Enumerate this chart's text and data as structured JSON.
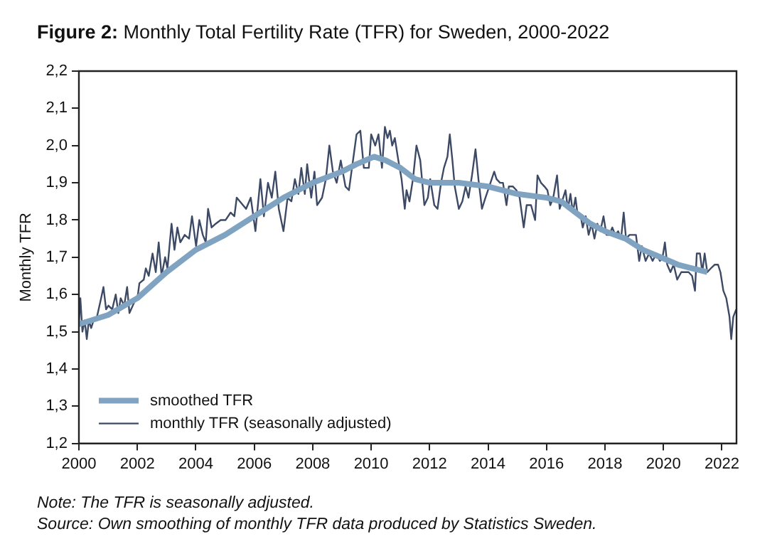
{
  "chart_data": {
    "type": "line",
    "title": "Figure 2: Monthly Total Fertility Rate (TFR) for Sweden, 2000-2022",
    "ylabel": "Monthly TFR",
    "annotations": [
      "Note: The TFR is seasonally adjusted.",
      "Source: Own smoothing of monthly TFR data produced by Statistics Sweden."
    ],
    "xlim": [
      2000,
      2022.5
    ],
    "xticks": [
      2000,
      2002,
      2004,
      2006,
      2008,
      2010,
      2012,
      2014,
      2016,
      2018,
      2020,
      2022
    ],
    "ylim": [
      1.2,
      2.2
    ],
    "yticks": [
      {
        "value": 1.2,
        "label": "1,2"
      },
      {
        "value": 1.3,
        "label": "1,3"
      },
      {
        "value": 1.4,
        "label": "1,4"
      },
      {
        "value": 1.5,
        "label": "1,5"
      },
      {
        "value": 1.6,
        "label": "1,6"
      },
      {
        "value": 1.7,
        "label": "1,7"
      },
      {
        "value": 1.8,
        "label": "1,8"
      },
      {
        "value": 1.9,
        "label": "1,9"
      },
      {
        "value": 2.0,
        "label": "2,0"
      },
      {
        "value": 2.1,
        "label": "2,1"
      },
      {
        "value": 2.2,
        "label": "2,2"
      }
    ],
    "grid": false,
    "legend": "bottom left",
    "marker": "none",
    "line_style": "solid",
    "series": [
      {
        "name": "smoothed TFR",
        "color": "#7fa3c0",
        "x": [
          2000,
          2001,
          2002,
          2003,
          2004,
          2005,
          2006,
          2007,
          2008,
          2009,
          2009.5,
          2010.1,
          2010.5,
          2011,
          2011.5,
          2012,
          2013,
          2014,
          2015,
          2016,
          2016.5,
          2017,
          2017.5,
          2018,
          2018.7,
          2019.3,
          2019.9,
          2020.5,
          2021,
          2021.5
        ],
        "values": [
          1.52,
          1.545,
          1.59,
          1.66,
          1.72,
          1.76,
          1.81,
          1.86,
          1.9,
          1.93,
          1.95,
          1.97,
          1.96,
          1.94,
          1.91,
          1.9,
          1.9,
          1.89,
          1.87,
          1.86,
          1.85,
          1.82,
          1.79,
          1.77,
          1.75,
          1.72,
          1.7,
          1.68,
          1.67,
          1.66
        ]
      },
      {
        "name": "monthly TFR (seasonally adjusted)",
        "color": "#3d4a66",
        "x": [
          2000,
          2000.05,
          2000.12,
          2000.2,
          2000.27,
          2000.34,
          2000.42,
          2000.5,
          2000.59,
          2000.76,
          2000.84,
          2000.93,
          2001.01,
          2001.14,
          2001.26,
          2001.35,
          2001.43,
          2001.55,
          2001.65,
          2001.73,
          2001.9,
          2002.02,
          2002.07,
          2002.22,
          2002.29,
          2002.39,
          2002.52,
          2002.63,
          2002.73,
          2002.83,
          2002.95,
          2003.03,
          2003.17,
          2003.27,
          2003.37,
          2003.47,
          2003.62,
          2003.77,
          2003.87,
          2004.01,
          2004.12,
          2004.24,
          2004.34,
          2004.42,
          2004.54,
          2004.68,
          2004.85,
          2005.02,
          2005.19,
          2005.32,
          2005.4,
          2005.72,
          2005.88,
          2006.04,
          2006.21,
          2006.33,
          2006.47,
          2006.6,
          2006.72,
          2006.84,
          2007,
          2007.14,
          2007.27,
          2007.39,
          2007.51,
          2007.61,
          2007.73,
          2007.81,
          2007.95,
          2008.06,
          2008.15,
          2008.32,
          2008.45,
          2008.57,
          2008.69,
          2008.82,
          2008.96,
          2009.12,
          2009.24,
          2009.5,
          2009.63,
          2009.75,
          2009.92,
          2010,
          2010.14,
          2010.25,
          2010.37,
          2010.47,
          2010.56,
          2010.64,
          2010.72,
          2010.81,
          2010.93,
          2011.04,
          2011.15,
          2011.21,
          2011.31,
          2011.43,
          2011.55,
          2011.68,
          2011.82,
          2011.94,
          2012.02,
          2012.16,
          2012.27,
          2012.39,
          2012.49,
          2012.61,
          2012.69,
          2012.78,
          2012.86,
          2013,
          2013.12,
          2013.23,
          2013.33,
          2013.45,
          2013.57,
          2013.67,
          2013.79,
          2013.91,
          2014.04,
          2014.21,
          2014.29,
          2014.41,
          2014.51,
          2014.63,
          2014.71,
          2014.85,
          2014.97,
          2015.08,
          2015.22,
          2015.32,
          2015.47,
          2015.61,
          2015.69,
          2015.81,
          2015.93,
          2016.03,
          2016.13,
          2016.23,
          2016.36,
          2016.45,
          2016.57,
          2016.65,
          2016.73,
          2016.82,
          2016.9,
          2016.99,
          2017.07,
          2017.17,
          2017.24,
          2017.34,
          2017.44,
          2017.54,
          2017.64,
          2017.74,
          2017.84,
          2017.95,
          2018.05,
          2018.15,
          2018.25,
          2018.35,
          2018.45,
          2018.55,
          2018.64,
          2018.72,
          2018.84,
          2018.96,
          2019.06,
          2019.17,
          2019.26,
          2019.39,
          2019.51,
          2019.63,
          2019.76,
          2019.88,
          2019.97,
          2020.05,
          2020.13,
          2020.24,
          2020.35,
          2020.47,
          2020.61,
          2020.74,
          2020.86,
          2020.98,
          2021.08,
          2021.14,
          2021.25,
          2021.33,
          2021.41,
          2021.5,
          2021.62,
          2021.75,
          2021.87,
          2021.95,
          2022.05,
          2022.15,
          2022.26,
          2022.32,
          2022.39,
          2022.49
        ],
        "values": [
          1.52,
          1.59,
          1.5,
          1.53,
          1.48,
          1.53,
          1.51,
          1.53,
          1.53,
          1.59,
          1.62,
          1.56,
          1.57,
          1.56,
          1.6,
          1.55,
          1.59,
          1.57,
          1.62,
          1.55,
          1.58,
          1.6,
          1.63,
          1.64,
          1.67,
          1.65,
          1.71,
          1.66,
          1.74,
          1.65,
          1.7,
          1.67,
          1.79,
          1.72,
          1.78,
          1.74,
          1.76,
          1.75,
          1.81,
          1.73,
          1.8,
          1.76,
          1.74,
          1.83,
          1.78,
          1.79,
          1.8,
          1.8,
          1.82,
          1.81,
          1.86,
          1.83,
          1.86,
          1.77,
          1.91,
          1.81,
          1.9,
          1.86,
          1.93,
          1.83,
          1.77,
          1.86,
          1.85,
          1.91,
          1.87,
          1.94,
          1.87,
          1.95,
          1.86,
          1.93,
          1.84,
          1.86,
          1.91,
          2.0,
          1.93,
          1.9,
          1.96,
          1.89,
          1.88,
          2.03,
          2.04,
          1.94,
          1.94,
          2.03,
          2.0,
          2.03,
          1.94,
          2.05,
          2.02,
          2.04,
          2.0,
          2.02,
          1.96,
          1.91,
          1.83,
          1.88,
          1.85,
          1.91,
          2.0,
          1.96,
          1.84,
          1.86,
          1.91,
          1.84,
          1.83,
          1.9,
          1.94,
          1.97,
          2.03,
          1.96,
          1.89,
          1.83,
          1.85,
          1.89,
          1.86,
          1.92,
          1.99,
          1.91,
          1.83,
          1.86,
          1.89,
          1.93,
          1.91,
          1.9,
          1.9,
          1.84,
          1.89,
          1.89,
          1.88,
          1.86,
          1.78,
          1.84,
          1.84,
          1.8,
          1.92,
          1.9,
          1.89,
          1.88,
          1.84,
          1.86,
          1.92,
          1.83,
          1.86,
          1.88,
          1.83,
          1.87,
          1.82,
          1.86,
          1.81,
          1.81,
          1.78,
          1.81,
          1.76,
          1.79,
          1.75,
          1.79,
          1.77,
          1.81,
          1.76,
          1.76,
          1.78,
          1.76,
          1.77,
          1.75,
          1.82,
          1.75,
          1.76,
          1.76,
          1.76,
          1.69,
          1.73,
          1.69,
          1.71,
          1.69,
          1.71,
          1.69,
          1.7,
          1.74,
          1.68,
          1.66,
          1.68,
          1.64,
          1.66,
          1.66,
          1.66,
          1.65,
          1.61,
          1.71,
          1.71,
          1.66,
          1.71,
          1.66,
          1.67,
          1.68,
          1.68,
          1.66,
          1.61,
          1.59,
          1.54,
          1.48,
          1.54,
          1.56
        ]
      }
    ]
  }
}
